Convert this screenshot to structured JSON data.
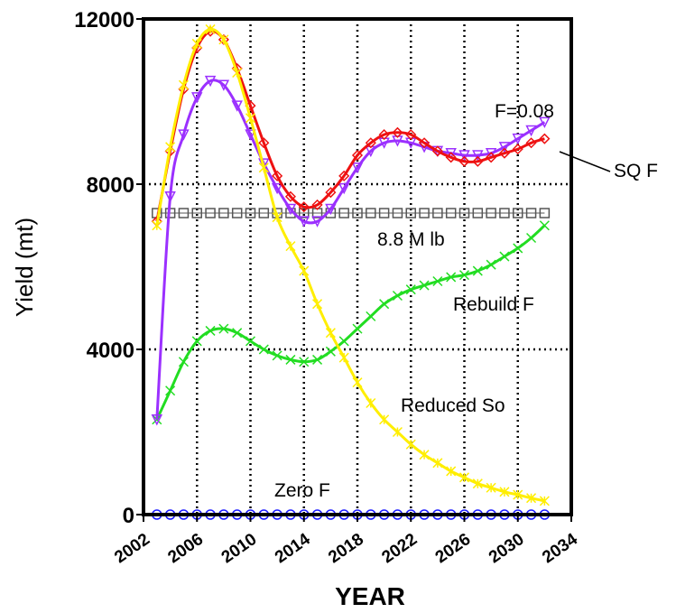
{
  "chart_data": {
    "type": "line",
    "xlabel": "YEAR",
    "ylabel": "Yield (mt)",
    "xlim": [
      2002,
      2034
    ],
    "ylim": [
      0,
      12000
    ],
    "x_ticks": [
      "2002",
      "2006",
      "2010",
      "2014",
      "2018",
      "2022",
      "2026",
      "2030",
      "2034"
    ],
    "y_ticks": [
      "0",
      "4000",
      "8000",
      "12000"
    ],
    "grid": true,
    "legend": "none",
    "x": [
      2003,
      2004,
      2005,
      2006,
      2007,
      2008,
      2009,
      2010,
      2011,
      2012,
      2013,
      2014,
      2015,
      2016,
      2017,
      2018,
      2019,
      2020,
      2021,
      2022,
      2023,
      2024,
      2025,
      2026,
      2027,
      2028,
      2029,
      2030,
      2031,
      2032
    ],
    "series": [
      {
        "name": "F=0.08",
        "color": "#9b30ff",
        "marker": "triangle-down",
        "values": [
          2300,
          7700,
          9200,
          10100,
          10500,
          10400,
          9900,
          9200,
          8500,
          7900,
          7400,
          7100,
          7100,
          7400,
          7900,
          8400,
          8800,
          9000,
          9050,
          9000,
          8900,
          8800,
          8750,
          8700,
          8700,
          8750,
          8900,
          9100,
          9300,
          9500
        ]
      },
      {
        "name": "SQ F",
        "color": "#ee1111",
        "marker": "diamond",
        "values": [
          7100,
          8800,
          10300,
          11300,
          11700,
          11500,
          10800,
          9900,
          9000,
          8200,
          7700,
          7450,
          7500,
          7800,
          8200,
          8700,
          9000,
          9200,
          9250,
          9200,
          9000,
          8800,
          8650,
          8550,
          8550,
          8650,
          8750,
          8850,
          9000,
          9100
        ]
      },
      {
        "name": "Reduced So",
        "color": "#ffee00",
        "marker": "star",
        "values": [
          7000,
          8900,
          10400,
          11400,
          11750,
          11500,
          10700,
          9600,
          8400,
          7200,
          6500,
          5900,
          5100,
          4400,
          3800,
          3200,
          2700,
          2300,
          2000,
          1700,
          1450,
          1250,
          1050,
          900,
          750,
          650,
          550,
          480,
          400,
          330
        ]
      },
      {
        "name": "Rebuild F",
        "color": "#22dd22",
        "marker": "x",
        "values": [
          2300,
          3000,
          3700,
          4200,
          4450,
          4500,
          4400,
          4200,
          4000,
          3850,
          3750,
          3700,
          3750,
          3950,
          4200,
          4500,
          4800,
          5100,
          5300,
          5450,
          5550,
          5650,
          5750,
          5800,
          5900,
          6050,
          6250,
          6450,
          6700,
          7000
        ]
      },
      {
        "name": "8.8 M lb",
        "color": "#555555",
        "marker": "square",
        "values": [
          7300,
          7300,
          7300,
          7300,
          7300,
          7300,
          7300,
          7300,
          7300,
          7300,
          7300,
          7300,
          7300,
          7300,
          7300,
          7300,
          7300,
          7300,
          7300,
          7300,
          7300,
          7300,
          7300,
          7300,
          7300,
          7300,
          7300,
          7300,
          7300,
          7300
        ]
      },
      {
        "name": "Zero F",
        "color": "#1a1aff",
        "marker": "circle",
        "values": [
          0,
          0,
          0,
          0,
          0,
          0,
          0,
          0,
          0,
          0,
          0,
          0,
          0,
          0,
          0,
          0,
          0,
          0,
          0,
          0,
          0,
          0,
          0,
          0,
          0,
          0,
          0,
          0,
          0,
          0
        ]
      }
    ],
    "annotations": [
      {
        "key": "f008",
        "text": "F=0.08"
      },
      {
        "key": "sqf",
        "text": "SQ F"
      },
      {
        "key": "mlb",
        "text": "8.8 M lb"
      },
      {
        "key": "rebuild",
        "text": "Rebuild F"
      },
      {
        "key": "reduced",
        "text": "Reduced So"
      },
      {
        "key": "zero",
        "text": "Zero F"
      }
    ]
  }
}
